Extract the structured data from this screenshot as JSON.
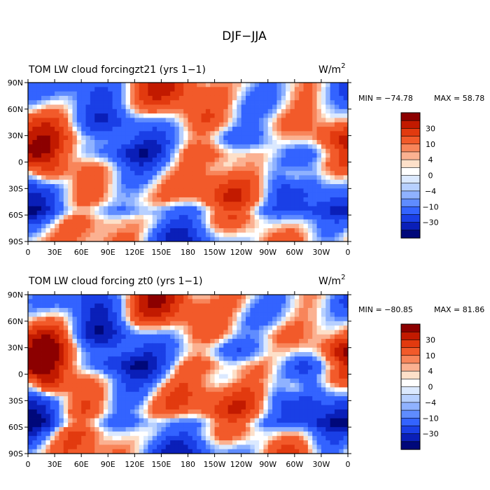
{
  "figure_title": "DJF−JJA",
  "units_base": "W/m",
  "units_exp": "2",
  "colorbar_ticks": [
    "30",
    "10",
    "4",
    "0",
    "−4",
    "−10",
    "−30"
  ],
  "colorbar_colors": [
    "#8c0000",
    "#c21a00",
    "#e23a0f",
    "#f25a2a",
    "#f8855a",
    "#fbb191",
    "#fde0c9",
    "#ffffff",
    "#dbe9ff",
    "#b7d0ff",
    "#8fb2ff",
    "#5f8cff",
    "#3363ff",
    "#1a3fe6",
    "#0a1fb8",
    "#00087a"
  ],
  "x_tick_labels": [
    "0",
    "30E",
    "60E",
    "90E",
    "120E",
    "150E",
    "180",
    "150W",
    "120W",
    "90W",
    "60W",
    "30W",
    "0"
  ],
  "y_tick_labels": [
    "90N",
    "60N",
    "30N",
    "0",
    "30S",
    "60S",
    "90S"
  ],
  "chart_data": [
    {
      "type": "heatmap",
      "title": "TOM LW cloud forcingzt21 (yrs 1−1)",
      "units": "W/m2",
      "min_label": "MIN = −74.78",
      "max_label": "MAX =  58.78",
      "min": -74.78,
      "max": 58.78,
      "xlim": [
        0,
        360
      ],
      "ylim": [
        -90,
        90
      ],
      "contour_levels": [
        -30,
        -10,
        -4,
        0,
        4,
        10,
        30
      ]
    },
    {
      "type": "heatmap",
      "title": "TOM LW cloud forcing zt0 (yrs 1−1)",
      "units": "W/m2",
      "min_label": "MIN = −80.85",
      "max_label": "MAX =  81.86",
      "min": -80.85,
      "max": 81.86,
      "xlim": [
        0,
        360
      ],
      "ylim": [
        -90,
        90
      ],
      "contour_levels": [
        -30,
        -10,
        -4,
        0,
        4,
        10,
        30
      ]
    }
  ]
}
